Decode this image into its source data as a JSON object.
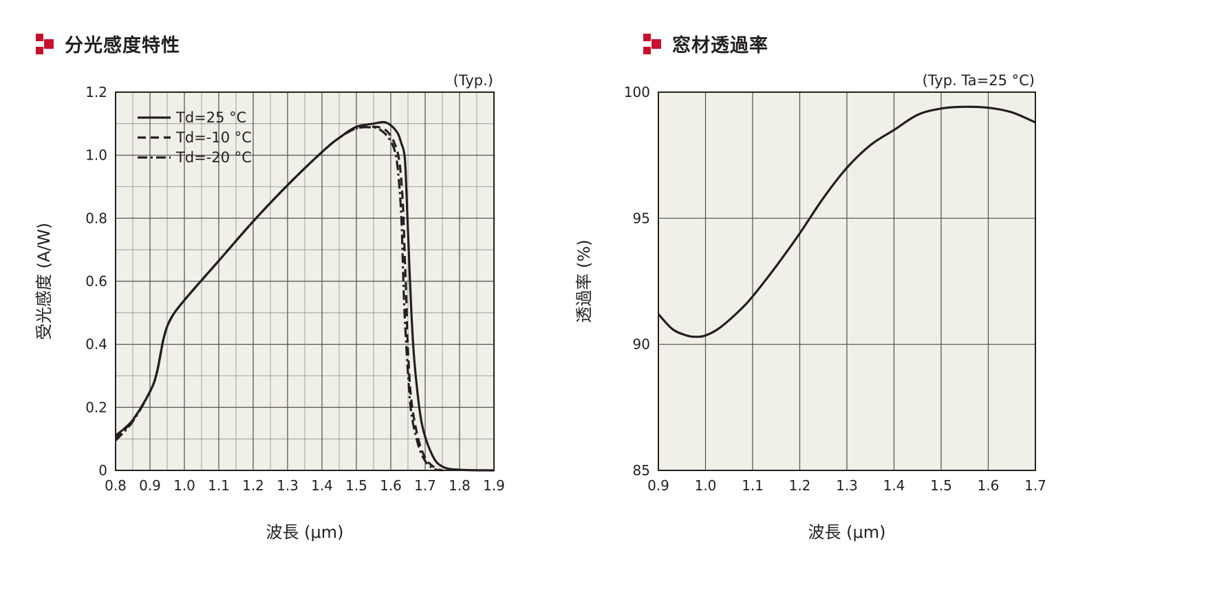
{
  "titles": {
    "left": "分光感度特性",
    "right": "窓材透過率"
  },
  "colors": {
    "marker": "#c8102e",
    "plot_background": "#f1f0e8",
    "grid": "#4d4d4d",
    "curve": "#231f20"
  },
  "chart_data": [
    {
      "type": "line",
      "title": "分光感度特性",
      "note": "(Typ.)",
      "xlabel": "波長 (μm)",
      "ylabel": "受光感度 (A/W)",
      "xlim": [
        0.8,
        1.9
      ],
      "ylim": [
        0,
        1.2
      ],
      "xticks": [
        0.8,
        0.9,
        1.0,
        1.1,
        1.2,
        1.3,
        1.4,
        1.5,
        1.6,
        1.7,
        1.8,
        1.9
      ],
      "xtick_labels": [
        "0.8",
        "0.9",
        "1.0",
        "1.1",
        "1.2",
        "1.3",
        "1.4",
        "1.5",
        "1.6",
        "1.7",
        "1.8",
        "1.9"
      ],
      "yticks": [
        0,
        0.2,
        0.4,
        0.6,
        0.8,
        1.0,
        1.2
      ],
      "ytick_labels": [
        "0",
        "0.2",
        "0.4",
        "0.6",
        "0.8",
        "1.0",
        "1.2"
      ],
      "x_minor_step": 0.05,
      "y_minor_step": 0.1,
      "grid": true,
      "legend": "top-left",
      "series": [
        {
          "name": "Td=25 °C",
          "style": "solid",
          "x": [
            0.8,
            0.85,
            0.9,
            0.92,
            0.94,
            0.96,
            1.0,
            1.1,
            1.2,
            1.3,
            1.4,
            1.45,
            1.5,
            1.55,
            1.58,
            1.6,
            1.62,
            1.63,
            1.64,
            1.645,
            1.65,
            1.66,
            1.67,
            1.69,
            1.72,
            1.75,
            1.8,
            1.9
          ],
          "y": [
            0.11,
            0.16,
            0.25,
            0.31,
            0.42,
            0.48,
            0.54,
            0.665,
            0.79,
            0.905,
            1.01,
            1.055,
            1.09,
            1.1,
            1.105,
            1.095,
            1.07,
            1.04,
            1.0,
            0.9,
            0.76,
            0.5,
            0.33,
            0.15,
            0.05,
            0.012,
            0.002,
            0.0
          ]
        },
        {
          "name": "Td=-10 °C",
          "style": "dashed",
          "x": [
            0.8,
            0.85,
            0.9,
            0.92,
            0.94,
            0.96,
            1.0,
            1.1,
            1.2,
            1.3,
            1.4,
            1.45,
            1.5,
            1.55,
            1.57,
            1.59,
            1.61,
            1.625,
            1.635,
            1.64,
            1.645,
            1.65,
            1.66,
            1.68,
            1.7,
            1.72,
            1.74,
            1.75
          ],
          "y": [
            0.1,
            0.16,
            0.25,
            0.31,
            0.42,
            0.48,
            0.54,
            0.665,
            0.79,
            0.905,
            1.01,
            1.055,
            1.085,
            1.09,
            1.087,
            1.075,
            1.04,
            0.98,
            0.85,
            0.7,
            0.55,
            0.38,
            0.22,
            0.1,
            0.04,
            0.015,
            0.003,
            0.0
          ]
        },
        {
          "name": "Td=-20 °C",
          "style": "dashdot",
          "x": [
            0.8,
            0.85,
            0.9,
            0.92,
            0.94,
            0.96,
            1.0,
            1.1,
            1.2,
            1.3,
            1.4,
            1.45,
            1.5,
            1.55,
            1.57,
            1.59,
            1.61,
            1.62,
            1.63,
            1.635,
            1.64,
            1.65,
            1.66,
            1.68,
            1.7,
            1.72,
            1.74
          ],
          "y": [
            0.095,
            0.155,
            0.25,
            0.31,
            0.42,
            0.48,
            0.54,
            0.665,
            0.79,
            0.905,
            1.01,
            1.055,
            1.085,
            1.088,
            1.08,
            1.06,
            1.02,
            0.96,
            0.82,
            0.66,
            0.5,
            0.31,
            0.18,
            0.08,
            0.03,
            0.008,
            0.0
          ]
        }
      ]
    },
    {
      "type": "line",
      "title": "窓材透過率",
      "note": "(Typ. Ta=25 °C)",
      "xlabel": "波長 (μm)",
      "ylabel": "透過率 (%)",
      "xlim": [
        0.9,
        1.7
      ],
      "ylim": [
        85,
        100
      ],
      "xticks": [
        0.9,
        1.0,
        1.1,
        1.2,
        1.3,
        1.4,
        1.5,
        1.6,
        1.7
      ],
      "xtick_labels": [
        "0.9",
        "1.0",
        "1.1",
        "1.2",
        "1.3",
        "1.4",
        "1.5",
        "1.6",
        "1.7"
      ],
      "yticks": [
        85,
        90,
        95,
        100
      ],
      "ytick_labels": [
        "85",
        "90",
        "95",
        "100"
      ],
      "grid": true,
      "series": [
        {
          "style": "solid",
          "x": [
            0.9,
            0.93,
            0.96,
            0.98,
            1.0,
            1.03,
            1.07,
            1.1,
            1.15,
            1.2,
            1.25,
            1.3,
            1.35,
            1.4,
            1.45,
            1.5,
            1.55,
            1.6,
            1.65,
            1.7
          ],
          "y": [
            91.2,
            90.6,
            90.35,
            90.3,
            90.35,
            90.65,
            91.3,
            91.9,
            93.1,
            94.4,
            95.8,
            97.0,
            97.9,
            98.5,
            99.1,
            99.35,
            99.42,
            99.38,
            99.2,
            98.8
          ]
        }
      ]
    }
  ]
}
